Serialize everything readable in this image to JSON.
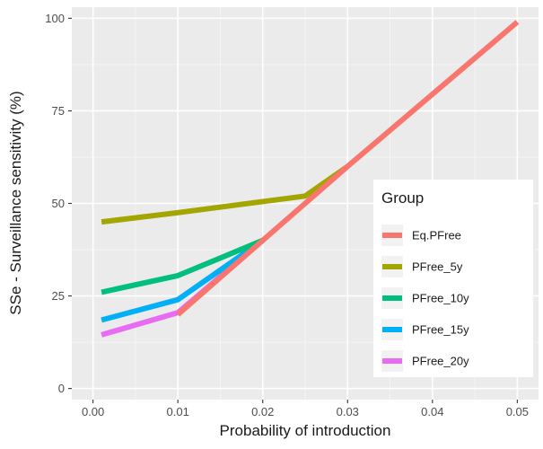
{
  "chart_data": {
    "type": "line",
    "title": "",
    "xlabel": "Probability of introduction",
    "ylabel": "SSe - Surveillance sensitivity (%)",
    "xlim": [
      -0.0025,
      0.0525
    ],
    "ylim": [
      -3,
      103
    ],
    "x_ticks": [
      0.0,
      0.01,
      0.02,
      0.03,
      0.04,
      0.05
    ],
    "x_tick_labels": [
      "0.00",
      "0.01",
      "0.02",
      "0.03",
      "0.04",
      "0.05"
    ],
    "y_ticks": [
      0,
      25,
      50,
      75,
      100
    ],
    "y_tick_labels": [
      "0",
      "25",
      "50",
      "75",
      "100"
    ],
    "grid": true,
    "background": "#ebebeb",
    "legend": {
      "title": "Group",
      "placement": "right-inside"
    },
    "series": [
      {
        "name": "Eq.PFree",
        "color": "#f8766d",
        "x": [
          0.01,
          0.02,
          0.03,
          0.05
        ],
        "y": [
          20,
          40,
          60,
          99
        ]
      },
      {
        "name": "PFree_5y",
        "color": "#a3a500",
        "x": [
          0.001,
          0.01,
          0.025,
          0.03
        ],
        "y": [
          45,
          47.5,
          52,
          60
        ]
      },
      {
        "name": "PFree_10y",
        "color": "#00bf7d",
        "x": [
          0.001,
          0.01,
          0.02
        ],
        "y": [
          26,
          30.5,
          40
        ]
      },
      {
        "name": "PFree_15y",
        "color": "#00b0f6",
        "x": [
          0.001,
          0.01,
          0.02
        ],
        "y": [
          18.5,
          24,
          40
        ]
      },
      {
        "name": "PFree_20y",
        "color": "#e76bf3",
        "x": [
          0.001,
          0.01,
          0.02
        ],
        "y": [
          14.5,
          20.5,
          40
        ]
      }
    ]
  }
}
